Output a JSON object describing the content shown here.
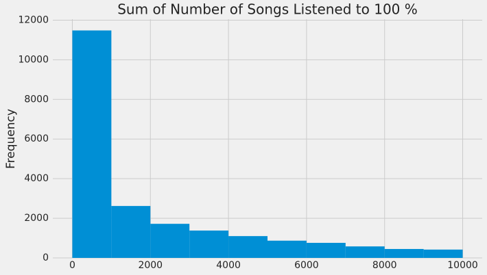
{
  "chart_data": {
    "type": "histogram",
    "title": "Sum of Number of Songs Listened to 100 %",
    "ylabel": "Frequency",
    "bins": [
      0,
      1000,
      2000,
      3000,
      4000,
      5000,
      6000,
      7000,
      8000,
      9000,
      10000
    ],
    "values": [
      11480,
      2620,
      1720,
      1380,
      1100,
      870,
      760,
      580,
      450,
      420
    ],
    "color": "#008fd5",
    "xlim": [
      -500,
      10500
    ],
    "ylim": [
      0,
      12050
    ],
    "xticks": [
      0,
      2000,
      4000,
      6000,
      8000,
      10000
    ],
    "yticks": [
      0,
      2000,
      4000,
      6000,
      8000,
      10000,
      12000
    ],
    "grid": true
  }
}
